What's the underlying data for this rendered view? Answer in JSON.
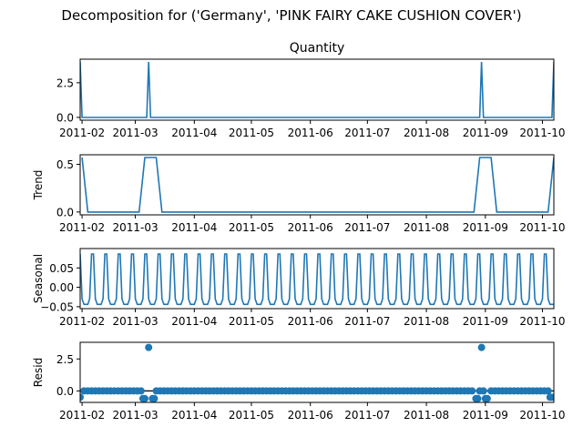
{
  "figure": {
    "title": "Decomposition for ('Germany', 'PINK FAIRY CAKE CUSHION COVER')"
  },
  "x_ticks": [
    "2011-02",
    "2011-03",
    "2011-04",
    "2011-05",
    "2011-06",
    "2011-07",
    "2011-08",
    "2011-09",
    "2011-10"
  ],
  "colors": {
    "series": "#1f77b4",
    "axis": "#000000",
    "zero_line": "#000000"
  },
  "chart_data": [
    {
      "type": "line",
      "title": "Quantity",
      "ylabel": "",
      "ylim": [
        -0.2,
        4.2
      ],
      "yticks": [
        "0.0",
        "2.5"
      ],
      "x": [
        "2011-01-31",
        "2011-02-01",
        "2011-03-07",
        "2011-03-08",
        "2011-03-09",
        "2011-08-29",
        "2011-08-30",
        "2011-08-31",
        "2011-10-06",
        "2011-10-07"
      ],
      "values": [
        4,
        0,
        0,
        4,
        0,
        0,
        4,
        0,
        0,
        4
      ]
    },
    {
      "type": "line",
      "title": "",
      "ylabel": "Trend",
      "ylim": [
        -0.03,
        0.6
      ],
      "yticks": [
        "0.0",
        "0.5"
      ],
      "x": [
        "2011-02-01",
        "2011-02-04",
        "2011-03-03",
        "2011-03-06",
        "2011-03-12",
        "2011-03-15",
        "2011-08-26",
        "2011-08-29",
        "2011-09-04",
        "2011-09-07",
        "2011-10-04",
        "2011-10-07"
      ],
      "values": [
        0.571,
        0,
        0,
        0.571,
        0.571,
        0,
        0,
        0.571,
        0.571,
        0,
        0,
        0.571
      ]
    },
    {
      "type": "line",
      "title": "",
      "ylabel": "Seasonal",
      "ylim": [
        -0.055,
        0.1
      ],
      "yticks": [
        "−0.05",
        "0.00",
        "0.05"
      ],
      "period_days": 7,
      "weekly_pattern": [
        0.086,
        -0.03,
        -0.044,
        -0.044,
        -0.044,
        -0.03,
        0.086
      ],
      "x_start": "2011-01-31",
      "x_end": "2011-10-07"
    },
    {
      "type": "scatter",
      "title": "",
      "ylabel": "Resid",
      "ylim": [
        -0.9,
        3.8
      ],
      "yticks": [
        "0.0",
        "2.5"
      ],
      "x_start": "2011-01-31",
      "x_end": "2011-10-07",
      "step_days": 2,
      "baseline": 0.0,
      "outliers": [
        {
          "x": "2011-01-31",
          "y": -0.5
        },
        {
          "x": "2011-03-05",
          "y": -0.6
        },
        {
          "x": "2011-03-06",
          "y": -0.6
        },
        {
          "x": "2011-03-08",
          "y": 3.4
        },
        {
          "x": "2011-03-10",
          "y": -0.6
        },
        {
          "x": "2011-03-11",
          "y": -0.6
        },
        {
          "x": "2011-08-27",
          "y": -0.6
        },
        {
          "x": "2011-08-28",
          "y": -0.6
        },
        {
          "x": "2011-08-30",
          "y": 3.4
        },
        {
          "x": "2011-09-01",
          "y": -0.6
        },
        {
          "x": "2011-09-02",
          "y": -0.6
        },
        {
          "x": "2011-10-05",
          "y": -0.5
        },
        {
          "x": "2011-10-06",
          "y": -0.5
        }
      ]
    }
  ]
}
